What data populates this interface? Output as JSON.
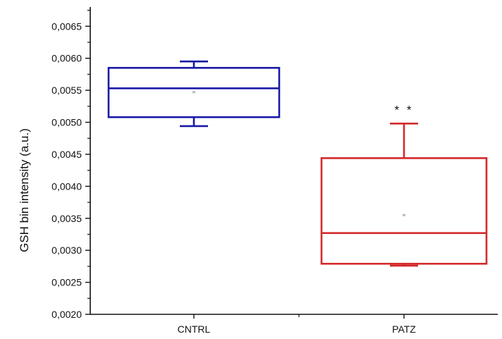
{
  "chart_data": {
    "type": "box",
    "xlabel": "",
    "ylabel": "GSH bin intensity (a.u.)",
    "ylim": [
      0.002,
      0.0068
    ],
    "yticks": [
      "0,0020",
      "0,0025",
      "0,0030",
      "0,0035",
      "0,0040",
      "0,0045",
      "0,0050",
      "0,0055",
      "0,0060",
      "0,0065"
    ],
    "ytick_values": [
      0.002,
      0.0025,
      0.003,
      0.0035,
      0.004,
      0.0045,
      0.005,
      0.0055,
      0.006,
      0.0065
    ],
    "categories": [
      "CNTRL",
      "PATZ"
    ],
    "boxes": [
      {
        "category": "CNTRL",
        "color": "#1a1aa6",
        "whisker_low": 0.00494,
        "q1": 0.00508,
        "median": 0.00553,
        "q3": 0.00585,
        "whisker_high": 0.00595,
        "mean": 0.00547,
        "annotation": ""
      },
      {
        "category": "PATZ",
        "color": "#d42a2a",
        "whisker_low": 0.00276,
        "q1": 0.00279,
        "median": 0.00327,
        "q3": 0.00444,
        "whisker_high": 0.00498,
        "mean": 0.00355,
        "annotation": "* *"
      }
    ],
    "grid": false,
    "legend": "none"
  }
}
